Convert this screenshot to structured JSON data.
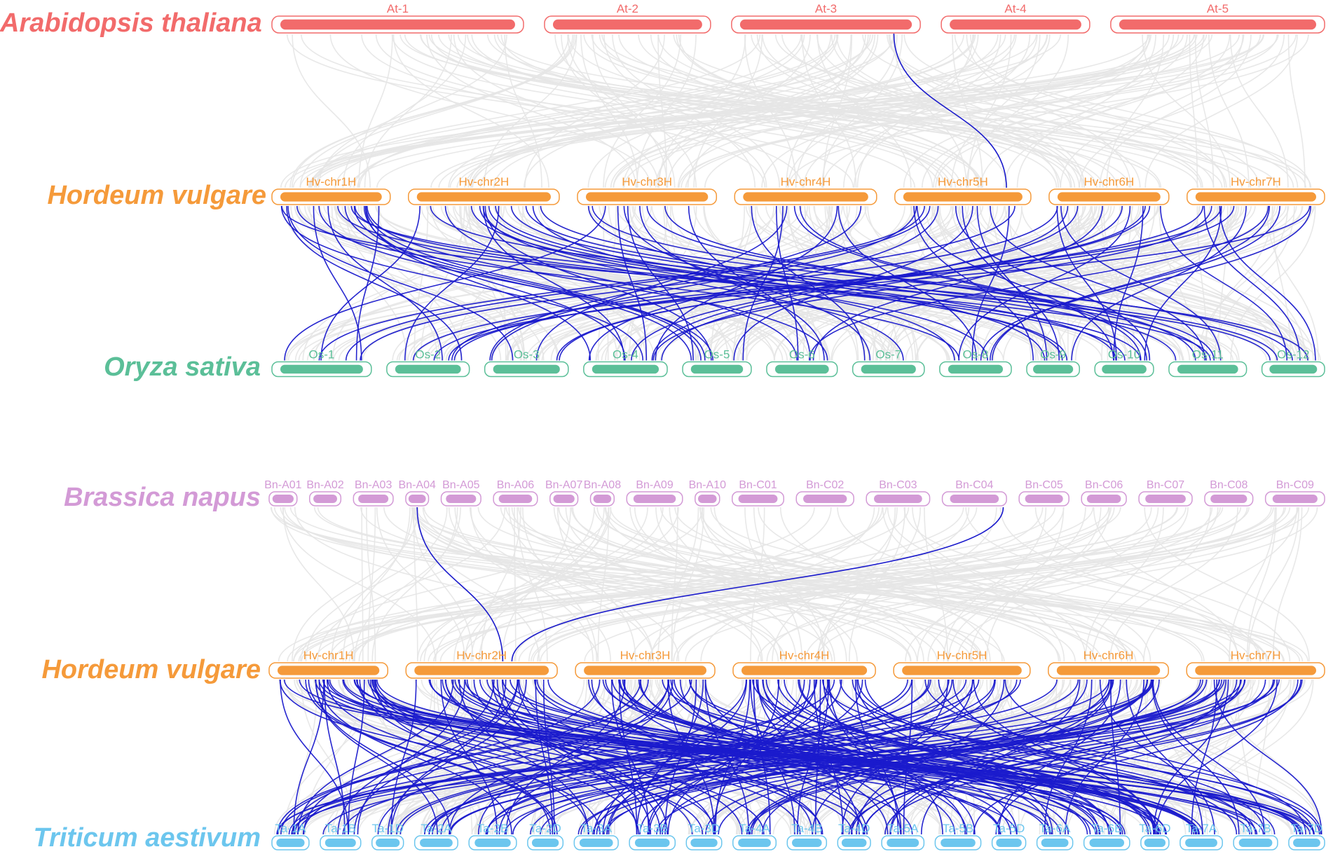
{
  "colors": {
    "background_link": "#e6e6e6",
    "highlight_link": "#1a1acc"
  },
  "tracks": [
    {
      "id": "at",
      "species": "Arabidopsis thaliana",
      "color": "#f26b6b",
      "chromosomes": [
        "At-1",
        "At-2",
        "At-3",
        "At-4",
        "At-5"
      ]
    },
    {
      "id": "hv1",
      "species": "Hordeum vulgare",
      "color": "#f59a3a",
      "chromosomes": [
        "Hv-chr1H",
        "Hv-chr2H",
        "Hv-chr3H",
        "Hv-chr4H",
        "Hv-chr5H",
        "Hv-chr6H",
        "Hv-chr7H"
      ]
    },
    {
      "id": "os",
      "species": "Oryza sativa",
      "color": "#5bbf98",
      "chromosomes": [
        "Os-1",
        "Os-2",
        "Os-3",
        "Os-4",
        "Os-5",
        "Os-6",
        "Os-7",
        "Os-8",
        "Os-9",
        "Os-10",
        "Os-11",
        "Os-12"
      ]
    },
    {
      "id": "bn",
      "species": "Brassica napus",
      "color": "#d39ad6",
      "chromosomes": [
        "Bn-A01",
        "Bn-A02",
        "Bn-A03",
        "Bn-A04",
        "Bn-A05",
        "Bn-A06",
        "Bn-A07",
        "Bn-A08",
        "Bn-A09",
        "Bn-A10",
        "Bn-C01",
        "Bn-C02",
        "Bn-C03",
        "Bn-C04",
        "Bn-C05",
        "Bn-C06",
        "Bn-C07",
        "Bn-C08",
        "Bn-C09"
      ]
    },
    {
      "id": "hv2",
      "species": "Hordeum vulgare",
      "color": "#f59a3a",
      "chromosomes": [
        "Hv-chr1H",
        "Hv-chr2H",
        "Hv-chr3H",
        "Hv-chr4H",
        "Hv-chr5H",
        "Hv-chr6H",
        "Hv-chr7H"
      ]
    },
    {
      "id": "ta",
      "species": "Triticum aestivum",
      "color": "#6cc6ee",
      "chromosomes": [
        "Ta-1A",
        "Ta-1B",
        "Ta-1D",
        "Ta-2A",
        "Ta-2B",
        "Ta-2D",
        "Ta-3A",
        "Ta-3B",
        "Ta-3D",
        "Ta-4A",
        "Ta-4B",
        "Ta-4D",
        "Ta-5A",
        "Ta-5B",
        "Ta-5D",
        "Ta-6A",
        "Ta-6B",
        "Ta-6D",
        "Ta-7A",
        "Ta-7B",
        "Ta-7D"
      ]
    }
  ]
}
